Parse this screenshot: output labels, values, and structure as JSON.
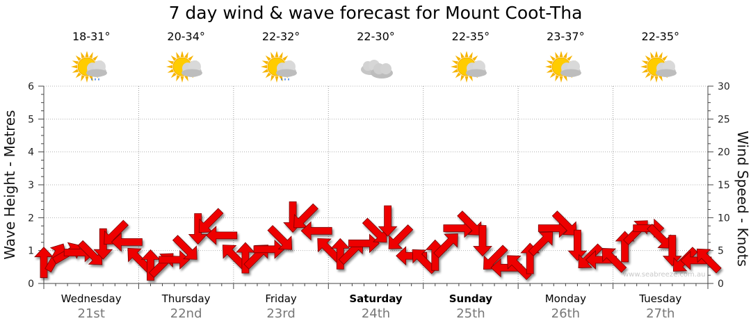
{
  "chart_data": {
    "type": "line",
    "title": "7 day wind & wave forecast for Mount Coot-Tha",
    "ylabel_left": "Wave Height - Metres",
    "ylabel_right": "Wind Speed - Knots",
    "ylim_left": [
      0,
      6
    ],
    "ylim_right": [
      0,
      30
    ],
    "yticks_left": [
      "0",
      "1",
      "2",
      "3",
      "4",
      "5",
      "6"
    ],
    "yticks_right": [
      "0",
      "5",
      "10",
      "15",
      "20",
      "25",
      "30"
    ],
    "grid": true,
    "days": [
      {
        "name": "Wednesday",
        "date": "21st",
        "temp": "18-31°",
        "icon": "sun-cloud-rain-icon",
        "bold": false
      },
      {
        "name": "Thursday",
        "date": "22nd",
        "temp": "20-34°",
        "icon": "sun-cloud-icon",
        "bold": false
      },
      {
        "name": "Friday",
        "date": "23rd",
        "temp": "22-32°",
        "icon": "sun-cloud-rain-icon",
        "bold": false
      },
      {
        "name": "Saturday",
        "date": "24th",
        "temp": "22-30°",
        "icon": "cloud-icon",
        "bold": true
      },
      {
        "name": "Sunday",
        "date": "25th",
        "temp": "22-35°",
        "icon": "sun-cloud-icon",
        "bold": true
      },
      {
        "name": "Monday",
        "date": "26th",
        "temp": "23-37°",
        "icon": "sun-cloud-icon",
        "bold": false
      },
      {
        "name": "Tuesday",
        "date": "27th",
        "temp": "22-35°",
        "icon": "sun-cloud-icon",
        "bold": false
      }
    ],
    "series": [
      {
        "name": "Wind Speed",
        "unit": "knots",
        "x_hours": [
          0,
          3,
          6,
          9,
          12,
          15,
          18,
          21,
          24,
          27,
          30,
          33,
          36,
          39,
          42,
          45,
          48,
          51,
          54,
          57,
          60,
          63,
          66,
          69,
          72,
          75,
          78,
          81,
          84,
          87,
          90,
          93,
          96,
          99,
          102,
          105,
          108,
          111,
          114,
          117,
          120,
          123,
          126,
          129,
          132,
          135,
          138,
          141,
          144,
          147,
          150,
          153,
          156,
          159,
          162,
          165,
          168
        ],
        "values": [
          3.2,
          4.0,
          4.6,
          4.7,
          4.5,
          6.0,
          7.6,
          6.3,
          3.7,
          2.8,
          2.9,
          3.6,
          5.3,
          8.3,
          9.4,
          7.3,
          4.2,
          3.9,
          4.2,
          5.2,
          6.8,
          10.1,
          10.1,
          8.0,
          5.2,
          4.5,
          4.9,
          6.1,
          7.9,
          9.5,
          6.9,
          4.2,
          3.5,
          4.3,
          5.9,
          8.4,
          9.0,
          6.5,
          3.8,
          2.4,
          2.6,
          3.8,
          6.2,
          8.4,
          9.0,
          5.8,
          4.0,
          3.6,
          3.7,
          5.6,
          7.9,
          8.4,
          7.0,
          5.0,
          3.5,
          3.5,
          3.6
        ],
        "direction_deg": [
          270,
          300,
          330,
          0,
          45,
          90,
          135,
          180,
          225,
          270,
          315,
          0,
          45,
          90,
          135,
          180,
          225,
          270,
          315,
          0,
          45,
          90,
          135,
          180,
          225,
          270,
          315,
          0,
          45,
          90,
          135,
          180,
          225,
          270,
          315,
          0,
          45,
          90,
          135,
          180,
          225,
          270,
          315,
          0,
          45,
          90,
          135,
          180,
          225,
          270,
          315,
          0,
          45,
          90,
          135,
          180,
          225
        ]
      }
    ],
    "watermark": "www.seabreeze.com.au"
  }
}
